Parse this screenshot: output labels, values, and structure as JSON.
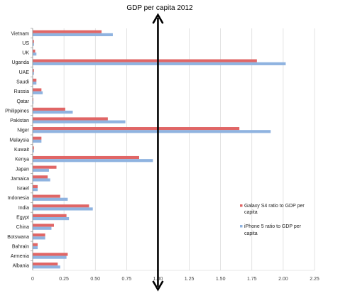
{
  "chart_data": {
    "type": "bar",
    "orientation": "horizontal",
    "title": "GDP per capita 2012",
    "xlabel": "",
    "ylabel": "",
    "xlim": [
      0,
      2.25
    ],
    "xticks": [
      "0",
      "0.25",
      "0.50",
      "0.75",
      "1.00",
      "1.25",
      "1.50",
      "1.75",
      "2.00",
      "2.25"
    ],
    "grid": true,
    "legend_position": "right",
    "categories": [
      "Vietnam",
      "US",
      "UK",
      "Uganda",
      "UAE",
      "Saudi",
      "Russia",
      "Qatar",
      "Philippines",
      "Pakistan",
      "Niger",
      "Malaysia",
      "Kuwait",
      "Kenya",
      "Japan",
      "Jamaica",
      "Israel",
      "Indonesia",
      "India",
      "Egypt",
      "China",
      "Botswana",
      "Bahrain",
      "Armenia",
      "Albania"
    ],
    "series": [
      {
        "name": "Galaxy S4 ratio to GDP per capita",
        "color": "#e06666",
        "values": [
          0.55,
          0.01,
          0.02,
          1.79,
          0.01,
          0.03,
          0.07,
          0.005,
          0.26,
          0.6,
          1.65,
          0.07,
          0.01,
          0.85,
          0.19,
          0.12,
          0.04,
          0.22,
          0.45,
          0.27,
          0.17,
          0.1,
          0.04,
          0.28,
          0.2
        ]
      },
      {
        "name": "iPhone 5 ratio to GDP per capita",
        "color": "#8fb3e0",
        "values": [
          0.64,
          0.01,
          0.03,
          2.02,
          0.01,
          0.03,
          0.08,
          0.006,
          0.32,
          0.74,
          1.9,
          0.07,
          0.01,
          0.96,
          0.13,
          0.14,
          0.04,
          0.28,
          0.48,
          0.29,
          0.15,
          0.1,
          0.04,
          0.27,
          0.22
        ]
      }
    ],
    "annotation": "vertical double-headed arrow at x = 1.00"
  },
  "colors": {
    "gridline": "#d0d0d0",
    "axis": "#888888",
    "arrow": "#000000"
  }
}
